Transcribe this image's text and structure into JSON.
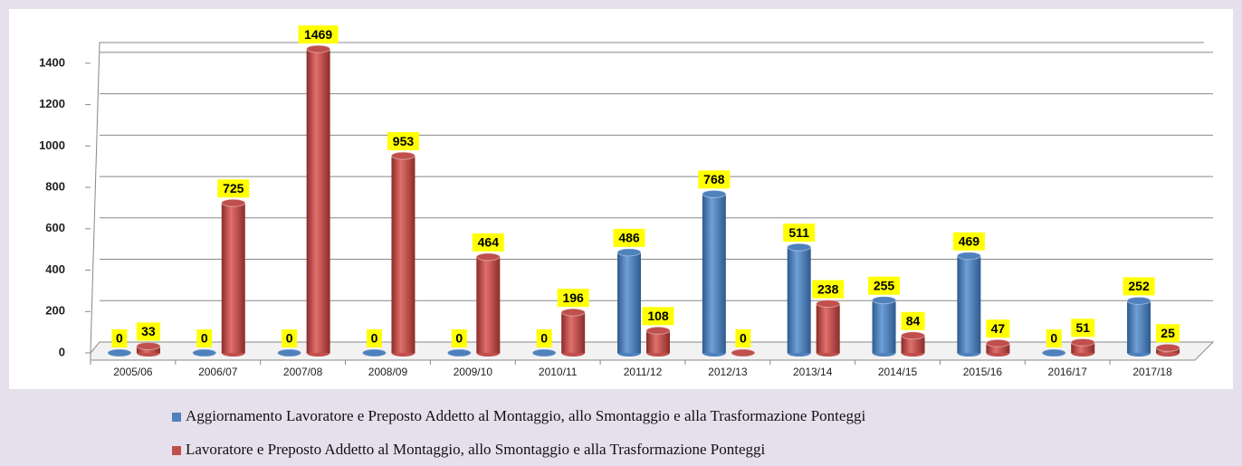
{
  "chart_data": {
    "type": "bar",
    "categories": [
      "2005/06",
      "2006/07",
      "2007/08",
      "2008/09",
      "2009/10",
      "2010/11",
      "2011/12",
      "2012/13",
      "2013/14",
      "2014/15",
      "2015/16",
      "2016/17",
      "2017/18"
    ],
    "series": [
      {
        "name": "Aggiornamento Lavoratore e Preposto Addetto al Montaggio, allo Smontaggio e alla Trasformazione Ponteggi",
        "color": "#4f81bd",
        "values": [
          0,
          0,
          0,
          0,
          0,
          0,
          486,
          768,
          511,
          255,
          469,
          0,
          252
        ]
      },
      {
        "name": "Lavoratore e Preposto Addetto al Montaggio, allo Smontaggio e alla Trasformazione Ponteggi",
        "color": "#c0504d",
        "values": [
          33,
          725,
          1469,
          953,
          464,
          196,
          108,
          0,
          238,
          84,
          47,
          51,
          25
        ]
      }
    ],
    "ylim": [
      0,
      1500
    ],
    "yticks": [
      0,
      200,
      400,
      600,
      800,
      1000,
      1200,
      1400
    ],
    "grid": true
  }
}
